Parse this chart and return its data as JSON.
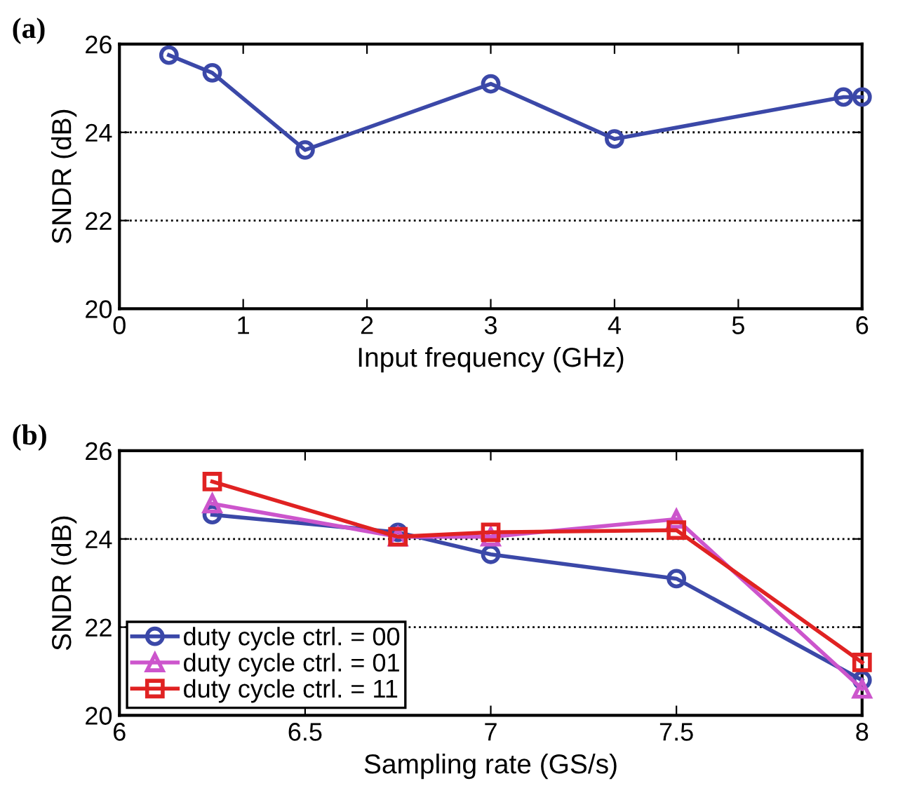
{
  "chart_data": [
    {
      "type": "line",
      "title": "(a)",
      "xlabel": "Input frequency (GHz)",
      "ylabel": "SNDR (dB)",
      "xlim": [
        0,
        6
      ],
      "xticks": [
        0,
        1,
        2,
        3,
        4,
        5,
        6
      ],
      "ylim": [
        20,
        26
      ],
      "yticks": [
        20,
        22,
        24,
        26
      ],
      "grid": "y",
      "legend": false,
      "marker": "circle",
      "line_style": "solid",
      "series": [
        {
          "color": "#3b48a8",
          "x": [
            0.4,
            0.75,
            1.5,
            3,
            4,
            5.85,
            6
          ],
          "values": [
            25.75,
            25.35,
            23.6,
            25.1,
            23.85,
            24.8,
            24.8
          ]
        }
      ]
    },
    {
      "type": "line",
      "title": "(b)",
      "xlabel": "Sampling rate (GS/s)",
      "ylabel": "SNDR (dB)",
      "xlim": [
        6,
        8
      ],
      "xticks": [
        6,
        6.5,
        7,
        7.5,
        8
      ],
      "ylim": [
        20,
        26
      ],
      "yticks": [
        20,
        22,
        24,
        26
      ],
      "grid": "y",
      "legend": "bottom left",
      "line_style": "solid",
      "x": [
        6.25,
        6.75,
        7,
        7.5,
        8
      ],
      "series": [
        {
          "name": "duty cycle ctrl. = 00",
          "color": "#3b48a8",
          "marker": "circle",
          "values": [
            24.55,
            24.15,
            23.65,
            23.1,
            20.8
          ]
        },
        {
          "name": "duty cycle ctrl. = 01",
          "color": "#cc55cc",
          "marker": "triangle",
          "values": [
            24.8,
            24.05,
            24.05,
            24.45,
            20.6
          ]
        },
        {
          "name": "duty cycle ctrl. = 11",
          "color": "#e02222",
          "marker": "square",
          "values": [
            25.3,
            24.05,
            24.15,
            24.2,
            21.2
          ]
        }
      ]
    }
  ]
}
